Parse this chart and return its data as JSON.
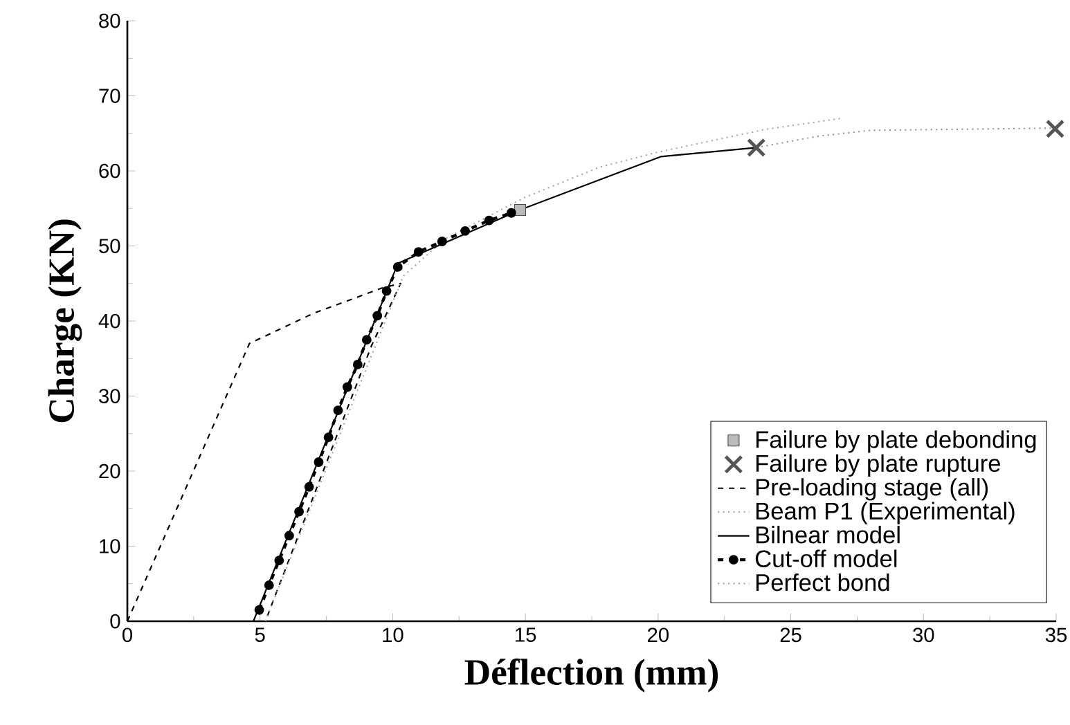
{
  "chart_data": {
    "type": "line",
    "xlabel": "Déflection (mm)",
    "ylabel": "Charge (KN)",
    "xlim": [
      0,
      35
    ],
    "ylim": [
      0,
      80
    ],
    "xticks": [
      0,
      5,
      10,
      15,
      20,
      25,
      30,
      35
    ],
    "yticks": [
      0,
      10,
      20,
      30,
      40,
      50,
      60,
      70,
      80
    ],
    "grid": false,
    "legend": "bottom right",
    "series": [
      {
        "name": "Failure by plate debonding",
        "type": "scatter",
        "marker": "square",
        "color": "#bbbbbb",
        "x": [
          14.8
        ],
        "values": [
          54.8
        ]
      },
      {
        "name": "Failure by plate rupture",
        "type": "scatter",
        "marker": "cross",
        "color": "#555555",
        "x": [
          23.7,
          34.96
        ],
        "values": [
          63.1,
          65.6
        ]
      },
      {
        "name": "Pre-loading stage (all)",
        "color": "#000000",
        "line_style": "dashed",
        "x": [
          0,
          4.6,
          7,
          9.6,
          10.3,
          9.2,
          5.2
        ],
        "values": [
          0,
          37,
          41,
          44.4,
          45,
          36.7,
          0
        ]
      },
      {
        "name": "Beam P1 (Experimental)",
        "color": "#aaaaaa",
        "line_style": "dotted",
        "x": [
          5.2,
          10.4,
          12,
          15,
          17.8,
          20,
          24,
          26.9
        ],
        "values": [
          0,
          46,
          51,
          56.5,
          60.5,
          62.5,
          65.5,
          67
        ]
      },
      {
        "name": "Bilnear model",
        "color": "#000000",
        "line_style": "solid",
        "x": [
          4.75,
          10.2,
          14.8,
          20.1,
          23.7
        ],
        "values": [
          0,
          47.7,
          54.8,
          61.9,
          63.1
        ]
      },
      {
        "name": "Cut-off model",
        "color": "#000000",
        "line_style": "dashed",
        "marker": "circle",
        "x": [
          4.97,
          5.34,
          5.72,
          6.1,
          6.47,
          6.85,
          7.21,
          7.58,
          7.94,
          8.29,
          8.68,
          9.02,
          9.42,
          9.77,
          10.19,
          10.97,
          11.86,
          12.73,
          13.63,
          14.47
        ],
        "values": [
          1.5,
          4.8,
          8.1,
          11.4,
          14.6,
          17.9,
          21.2,
          24.5,
          28.1,
          31.2,
          34.2,
          37.5,
          40.7,
          44.0,
          47.2,
          49.2,
          50.6,
          52.0,
          53.4,
          54.4
        ]
      },
      {
        "name": "Perfect bond",
        "color": "#999999",
        "line_style": "dotted",
        "x": [
          23.7,
          26,
          28,
          35
        ],
        "values": [
          63.1,
          64.6,
          65.4,
          65.7
        ]
      }
    ]
  }
}
